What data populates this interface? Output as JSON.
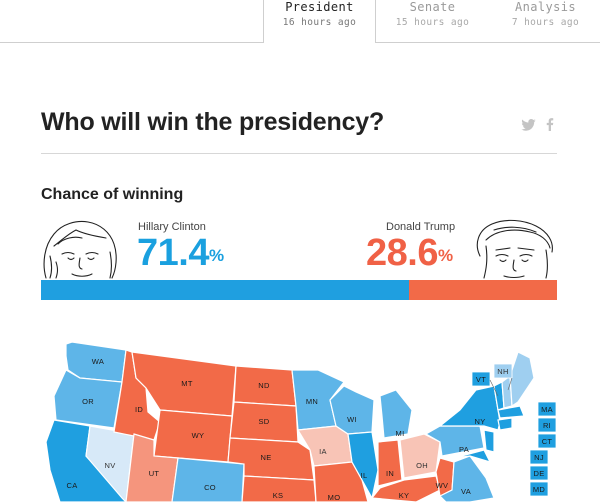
{
  "tabs": [
    {
      "id": "president",
      "label": "President",
      "time": "16 hours ago",
      "active": true
    },
    {
      "id": "senate",
      "label": "Senate",
      "time": "15 hours ago",
      "active": false
    },
    {
      "id": "analysis",
      "label": "Analysis",
      "time": "7 hours ago",
      "active": false
    }
  ],
  "headline": "Who will win the presidency?",
  "share": {
    "twitter_icon": "twitter-icon",
    "facebook_icon": "facebook-icon"
  },
  "section_title": "Chance of winning",
  "candidates": {
    "dem": {
      "name": "Hillary Clinton",
      "percent": "71.4",
      "sign": "%",
      "color": "#1f9fe0",
      "value": 71.4
    },
    "rep": {
      "name": "Donald Trump",
      "percent": "28.6",
      "sign": "%",
      "color": "#f26a48",
      "value": 28.6
    }
  },
  "map": {
    "states": [
      "WA",
      "OR",
      "CA",
      "NV",
      "ID",
      "UT",
      "MT",
      "WY",
      "CO",
      "ND",
      "SD",
      "NE",
      "KS",
      "MN",
      "IA",
      "MO",
      "WI",
      "IL",
      "MI",
      "IN",
      "OH",
      "KY",
      "WV",
      "PA",
      "NY",
      "VA",
      "VT",
      "NH",
      "ME",
      "MA",
      "RI",
      "CT",
      "NJ",
      "DE",
      "MD"
    ],
    "colors": {
      "safe_dem": "#1f9fe0",
      "likely_dem": "#5eb5e8",
      "lean_dem": "#9fcff0",
      "tossup_dem": "#d7e9f8",
      "tossup_rep": "#f8c4b6",
      "lean_rep": "#f5957d",
      "safe_rep": "#f26a48"
    }
  }
}
